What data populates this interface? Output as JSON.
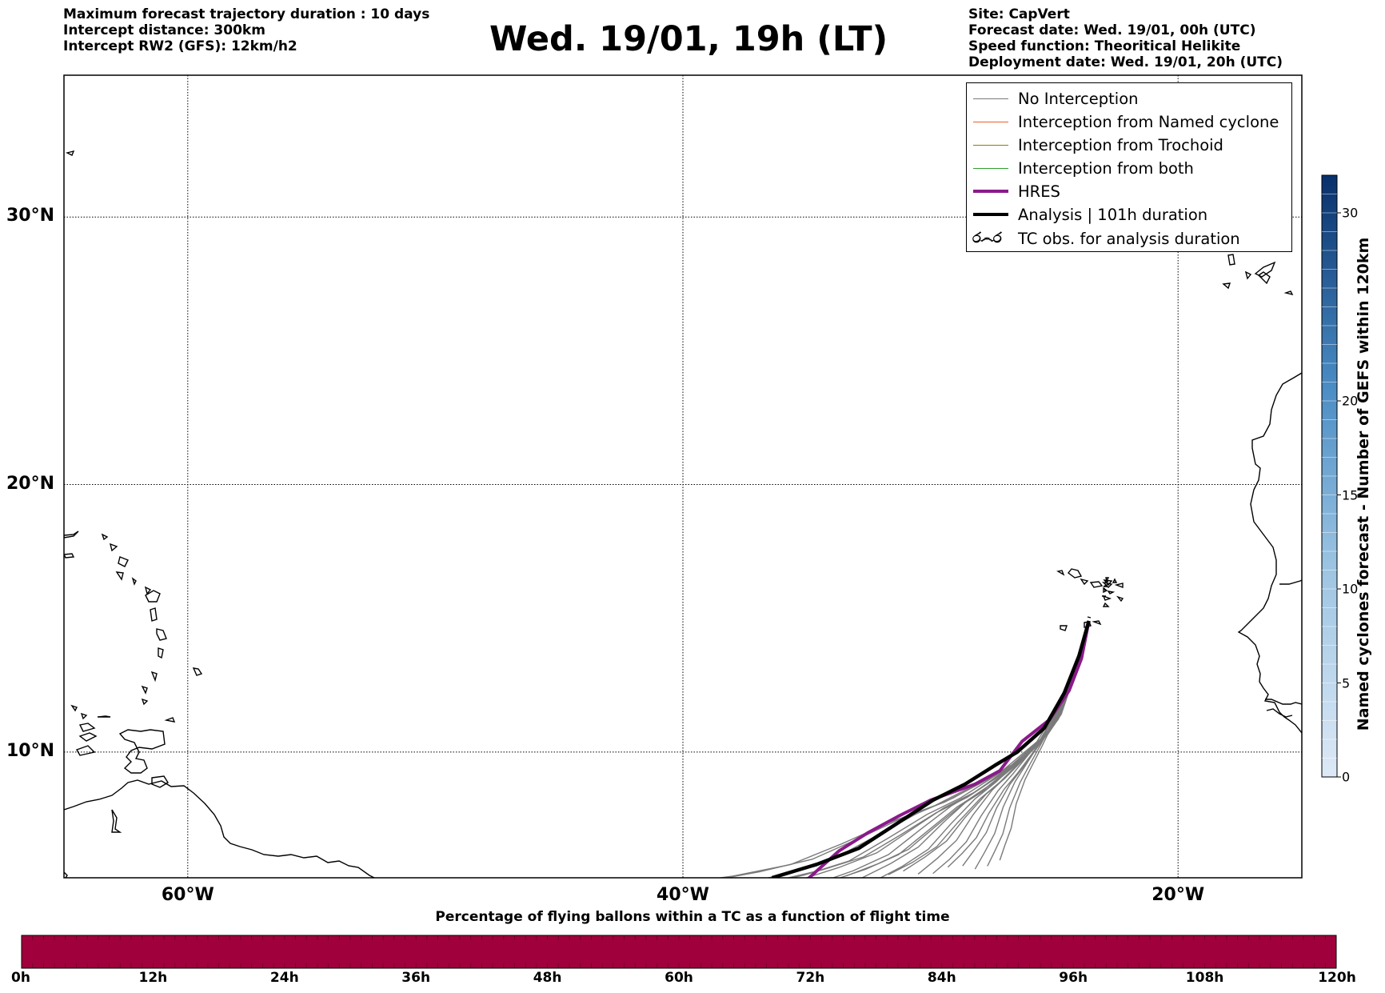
{
  "header": {
    "left_lines": [
      "Maximum forecast trajectory duration : 10 days",
      "Intercept distance: 300km",
      "Intercept RW2 (GFS):  12km/h2"
    ],
    "title": "Wed. 19/01, 19h (LT)",
    "right_lines": [
      "Site: CapVert",
      "Forecast date: Wed. 19/01, 00h (UTC)",
      "Speed function: Theoritical Helikite",
      "Deployment date: Wed. 19/01, 20h (UTC)"
    ]
  },
  "map": {
    "extent": {
      "lon_min": -65,
      "lon_max": -15,
      "lat_min": 5.3,
      "lat_max": 35.3
    },
    "lat_ticks": [
      {
        "value": 30,
        "label": "30°N"
      },
      {
        "value": 20,
        "label": "20°N"
      },
      {
        "value": 10,
        "label": "10°N"
      }
    ],
    "lon_ticks": [
      {
        "value": -60,
        "label": "60°W"
      },
      {
        "value": -40,
        "label": "40°W"
      },
      {
        "value": -20,
        "label": "20°W"
      }
    ],
    "grid": true,
    "colors": {
      "ensemble": "#7a7a7a",
      "named_cyclone": "#e8602c",
      "trochoid": "#8a7a1a",
      "both": "#2e9e2e",
      "hres": "#8b1a8b",
      "analysis": "#000000",
      "coast": "#000000"
    },
    "trajectories": {
      "origin": {
        "lon": -23.6,
        "lat": 14.9
      },
      "ensemble_endpoints": [
        {
          "lon": -40.5,
          "lat": 5.3
        },
        {
          "lon": -39.2,
          "lat": 5.3
        },
        {
          "lon": -38.0,
          "lat": 5.3
        },
        {
          "lon": -37.0,
          "lat": 5.3
        },
        {
          "lon": -36.1,
          "lat": 5.3
        },
        {
          "lon": -35.3,
          "lat": 5.3
        },
        {
          "lon": -34.6,
          "lat": 5.3
        },
        {
          "lon": -34.0,
          "lat": 5.3
        },
        {
          "lon": -33.4,
          "lat": 5.3
        },
        {
          "lon": -32.8,
          "lat": 5.3
        },
        {
          "lon": -32.2,
          "lat": 5.3
        },
        {
          "lon": -31.7,
          "lat": 5.3
        },
        {
          "lon": -31.1,
          "lat": 5.3
        },
        {
          "lon": -30.5,
          "lat": 5.3
        },
        {
          "lon": -29.9,
          "lat": 5.3
        },
        {
          "lon": -29.3,
          "lat": 5.3
        },
        {
          "lon": -28.7,
          "lat": 5.3
        },
        {
          "lon": -28.2,
          "lat": 5.3
        },
        {
          "lon": -27.7,
          "lat": 5.3
        },
        {
          "lon": -27.2,
          "lat": 5.3
        }
      ],
      "hres": [
        {
          "lon": -23.6,
          "lat": 14.9
        },
        {
          "lon": -23.9,
          "lat": 13.5
        },
        {
          "lon": -24.4,
          "lat": 12.3
        },
        {
          "lon": -25.2,
          "lat": 11.2
        },
        {
          "lon": -26.3,
          "lat": 10.4
        },
        {
          "lon": -27.2,
          "lat": 9.3
        },
        {
          "lon": -28.2,
          "lat": 8.8
        },
        {
          "lon": -30.0,
          "lat": 8.2
        },
        {
          "lon": -31.3,
          "lat": 7.6
        },
        {
          "lon": -32.5,
          "lat": 7.0
        },
        {
          "lon": -33.7,
          "lat": 6.3
        },
        {
          "lon": -34.9,
          "lat": 5.3
        }
      ],
      "analysis": [
        {
          "lon": -23.6,
          "lat": 14.9
        },
        {
          "lon": -24.0,
          "lat": 13.6
        },
        {
          "lon": -24.6,
          "lat": 12.2
        },
        {
          "lon": -25.4,
          "lat": 10.9
        },
        {
          "lon": -26.5,
          "lat": 10.0
        },
        {
          "lon": -27.4,
          "lat": 9.5
        },
        {
          "lon": -28.6,
          "lat": 8.8
        },
        {
          "lon": -29.9,
          "lat": 8.2
        },
        {
          "lon": -31.4,
          "lat": 7.3
        },
        {
          "lon": -32.9,
          "lat": 6.4
        },
        {
          "lon": -34.6,
          "lat": 5.8
        },
        {
          "lon": -36.4,
          "lat": 5.3
        }
      ]
    }
  },
  "legend": {
    "items": [
      {
        "label": "No Interception",
        "style": "thin",
        "color": "#7a7a7a"
      },
      {
        "label": "Interception from Named cyclone",
        "style": "thin",
        "color": "#e8602c"
      },
      {
        "label": "Interception from Trochoid",
        "style": "thin",
        "color": "#8a7a1a"
      },
      {
        "label": "Interception from both",
        "style": "thin",
        "color": "#2e9e2e"
      },
      {
        "label": "HRES",
        "style": "thick",
        "color": "#8b1a8b"
      },
      {
        "label": "Analysis | 101h duration",
        "style": "thick",
        "color": "#000000"
      },
      {
        "label": "TC obs. for analysis duration",
        "style": "icon",
        "icon": "tc-symbols",
        "glyphs": "ර෴ර"
      }
    ]
  },
  "colorbar_vertical": {
    "title": "Named cyclones forecast - Number of GEFS within 120km",
    "min": 0,
    "max": 32,
    "ticks": [
      0,
      5,
      10,
      15,
      20,
      30
    ],
    "color_low": "#dde9f6",
    "color_high": "#08306b"
  },
  "colorbar_horizontal": {
    "title": "Percentage of flying ballons within a TC as a function of flight time",
    "fill_color": "#a0003c",
    "ticks": [
      "0h",
      "12h",
      "24h",
      "36h",
      "48h",
      "60h",
      "72h",
      "84h",
      "96h",
      "108h",
      "120h"
    ]
  }
}
